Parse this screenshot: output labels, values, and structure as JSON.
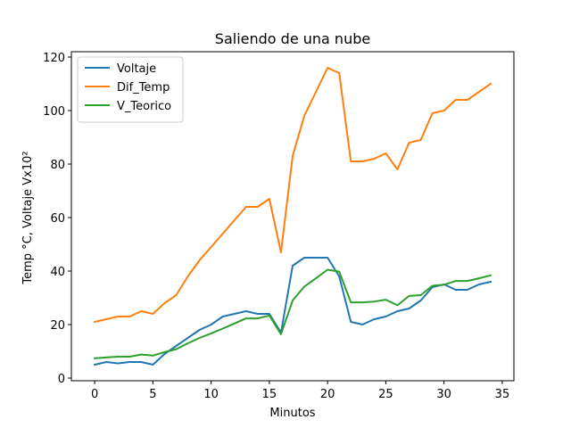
{
  "chart_data": {
    "type": "line",
    "title": "Saliendo de una nube",
    "xlabel": "Minutos",
    "ylabel": "Temp °C, Voltaje Vx10²",
    "xlim": [
      -2,
      36
    ],
    "ylim": [
      -1,
      122
    ],
    "xticks": [
      0,
      5,
      10,
      15,
      20,
      25,
      30,
      35
    ],
    "yticks": [
      0,
      20,
      40,
      60,
      80,
      100,
      120
    ],
    "grid": false,
    "legend_position": "top-left",
    "x": [
      0,
      1,
      2,
      3,
      4,
      5,
      6,
      7,
      8,
      9,
      10,
      11,
      12,
      13,
      14,
      15,
      16,
      17,
      18,
      19,
      20,
      21,
      22,
      23,
      24,
      25,
      26,
      27,
      28,
      29,
      30,
      31,
      32,
      33,
      34
    ],
    "series": [
      {
        "name": "Voltaje",
        "color": "#1f77b4",
        "values": [
          5,
          6,
          5.5,
          6,
          6,
          5,
          9,
          12,
          15,
          18,
          20,
          23,
          24,
          25,
          24,
          24,
          17,
          42,
          45,
          45,
          45,
          38,
          21,
          20,
          22,
          23,
          25,
          26,
          29,
          34,
          35,
          33,
          33,
          35,
          36
        ]
      },
      {
        "name": "Dif_Temp",
        "color": "#ff7f0e",
        "values": [
          21,
          22,
          23,
          23,
          25,
          24,
          28,
          31,
          38,
          44,
          49,
          54,
          59,
          64,
          64,
          67,
          47,
          83,
          98,
          107,
          116,
          114,
          81,
          81,
          82,
          84,
          78,
          88,
          89,
          99,
          100,
          104,
          104,
          107,
          110
        ]
      },
      {
        "name": "V_Teorico",
        "color": "#2ca02c",
        "values": [
          7.4,
          7.7,
          8,
          8,
          8.8,
          8.4,
          9.7,
          10.8,
          13,
          15,
          16.7,
          18.5,
          20.4,
          22.3,
          22.3,
          23.4,
          16.4,
          29,
          34.2,
          37.3,
          40.5,
          39.8,
          28.3,
          28.3,
          28.6,
          29.3,
          27.2,
          30.7,
          31,
          34.5,
          34.9,
          36.3,
          36.3,
          37.3,
          38.4
        ]
      }
    ]
  }
}
